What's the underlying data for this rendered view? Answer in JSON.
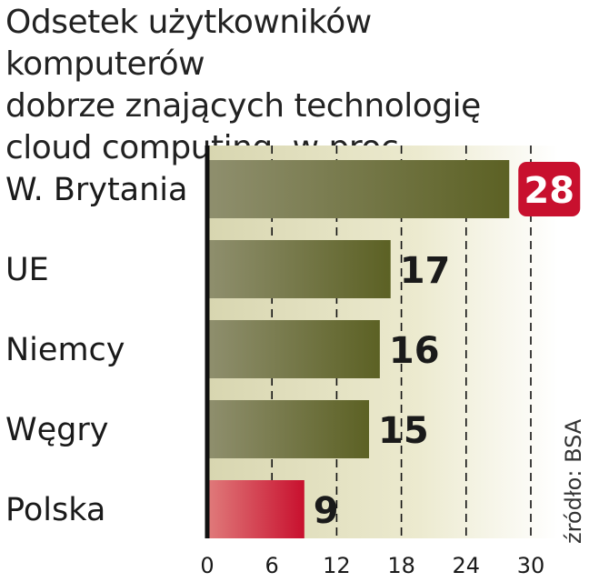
{
  "chart_data": {
    "type": "bar",
    "orientation": "horizontal",
    "title_lines": [
      "Odsetek użytkowników komputerów",
      "dobrze znających technologię",
      "cloud computing, w proc."
    ],
    "categories": [
      "W. Brytania",
      "UE",
      "Niemcy",
      "Węgry",
      "Polska"
    ],
    "values": [
      28,
      17,
      16,
      15,
      9
    ],
    "value_labels": [
      "28",
      "17",
      "16",
      "15",
      "9"
    ],
    "highlight": {
      "W. Brytania": "value_label",
      "Polska": "bar"
    },
    "xlim": [
      0,
      30
    ],
    "xticks": [
      0,
      6,
      12,
      18,
      24,
      30
    ],
    "xtick_labels": [
      "0",
      "6",
      "12",
      "18",
      "24",
      "30"
    ],
    "grid": "vertical dashed",
    "source": "źródło: BSA",
    "colors": {
      "bar_dark": "#5c6124",
      "bar_light": "#8f8f6e",
      "highlight_dark": "#c8102e",
      "highlight_light": "#e07b7b",
      "background_light": "#e6e4c5",
      "axis": "#111111"
    }
  }
}
